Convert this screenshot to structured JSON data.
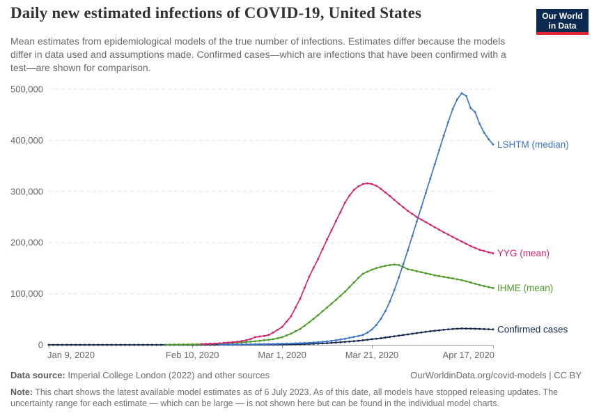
{
  "header": {
    "title": "Daily new estimated infections of COVID-19, United States",
    "subtitle": "Mean estimates from epidemiological models of the true number of infections. Estimates differ because the models differ in data used and assumptions made. Confirmed cases—which are infections that have been confirmed with a test—are shown for comparison.",
    "logo": {
      "line1": "Our World",
      "line2": "in Data"
    }
  },
  "colors": {
    "logo_bg": "#0b2a51",
    "logo_accent": "#e02833",
    "grid": "#e2e2e2",
    "axis": "#9a9a9a",
    "tick_text": "#666666"
  },
  "chart_data": {
    "type": "line",
    "title": "Daily new estimated infections of COVID-19, United States",
    "grid": "dashed-horizontal",
    "legend_position": "end-of-line-labels",
    "x_axis": {
      "unit": "date",
      "day0_date": "Jan 9, 2020",
      "range_days": [
        0,
        99
      ],
      "ticks": [
        {
          "day": 0,
          "label": "Jan 9, 2020"
        },
        {
          "day": 32,
          "label": "Feb 10, 2020"
        },
        {
          "day": 52,
          "label": "Mar 1, 2020"
        },
        {
          "day": 72,
          "label": "Mar 21, 2020"
        },
        {
          "day": 99,
          "label": "Apr 17, 2020"
        }
      ]
    },
    "y_axis": {
      "lim": [
        0,
        500000
      ],
      "ticks": [
        {
          "value": 0,
          "label": "0"
        },
        {
          "value": 100000,
          "label": "100,000"
        },
        {
          "value": 200000,
          "label": "200,000"
        },
        {
          "value": 300000,
          "label": "300,000"
        },
        {
          "value": 400000,
          "label": "400,000"
        },
        {
          "value": 500000,
          "label": "500,000"
        }
      ]
    },
    "series": [
      {
        "id": "confirmed",
        "name": "Confirmed cases",
        "color": "#15294d",
        "points": [
          [
            0,
            0
          ],
          [
            8,
            0
          ],
          [
            16,
            0
          ],
          [
            24,
            0
          ],
          [
            32,
            50
          ],
          [
            40,
            150
          ],
          [
            46,
            250
          ],
          [
            50,
            400
          ],
          [
            52,
            600
          ],
          [
            54,
            850
          ],
          [
            56,
            1200
          ],
          [
            58,
            1700
          ],
          [
            60,
            2400
          ],
          [
            62,
            3300
          ],
          [
            64,
            4500
          ],
          [
            66,
            5800
          ],
          [
            68,
            7200
          ],
          [
            70,
            9000
          ],
          [
            72,
            11000
          ],
          [
            74,
            13000
          ],
          [
            76,
            15500
          ],
          [
            78,
            18000
          ],
          [
            80,
            20500
          ],
          [
            82,
            23000
          ],
          [
            84,
            25500
          ],
          [
            86,
            27500
          ],
          [
            88,
            29500
          ],
          [
            90,
            31000
          ],
          [
            92,
            32000
          ],
          [
            94,
            31800
          ],
          [
            96,
            31200
          ],
          [
            98,
            30500
          ],
          [
            99,
            30200
          ]
        ]
      },
      {
        "id": "ihme",
        "name": "IHME (mean)",
        "color": "#4c9a26",
        "points": [
          [
            26,
            300
          ],
          [
            30,
            700
          ],
          [
            34,
            1300
          ],
          [
            38,
            2400
          ],
          [
            42,
            4200
          ],
          [
            46,
            7000
          ],
          [
            48,
            9000
          ],
          [
            50,
            11000
          ],
          [
            52,
            15000
          ],
          [
            54,
            22000
          ],
          [
            56,
            31000
          ],
          [
            58,
            44000
          ],
          [
            60,
            58000
          ],
          [
            62,
            73000
          ],
          [
            64,
            88000
          ],
          [
            66,
            104000
          ],
          [
            67,
            113000
          ],
          [
            68,
            122000
          ],
          [
            69,
            131000
          ],
          [
            70,
            139000
          ],
          [
            71,
            143000
          ],
          [
            72,
            147000
          ],
          [
            73,
            150000
          ],
          [
            74,
            152500
          ],
          [
            75,
            154500
          ],
          [
            76,
            156000
          ],
          [
            77,
            157000
          ],
          [
            78,
            156000
          ],
          [
            79,
            152000
          ],
          [
            80,
            148000
          ],
          [
            82,
            144000
          ],
          [
            84,
            140000
          ],
          [
            86,
            136000
          ],
          [
            88,
            133000
          ],
          [
            90,
            130000
          ],
          [
            92,
            126500
          ],
          [
            94,
            122000
          ],
          [
            96,
            117000
          ],
          [
            97,
            115000
          ],
          [
            98,
            113000
          ],
          [
            99,
            111000
          ]
        ]
      },
      {
        "id": "yyg",
        "name": "YYG (mean)",
        "color": "#d5246e",
        "points": [
          [
            34,
            1500
          ],
          [
            38,
            3000
          ],
          [
            42,
            6000
          ],
          [
            44,
            9000
          ],
          [
            45,
            11500
          ],
          [
            46,
            15000
          ],
          [
            47,
            16500
          ],
          [
            48,
            17500
          ],
          [
            49,
            19500
          ],
          [
            50,
            24000
          ],
          [
            52,
            35000
          ],
          [
            54,
            56000
          ],
          [
            56,
            90000
          ],
          [
            58,
            133000
          ],
          [
            60,
            168000
          ],
          [
            62,
            206000
          ],
          [
            64,
            242000
          ],
          [
            66,
            278000
          ],
          [
            67,
            292000
          ],
          [
            68,
            303000
          ],
          [
            69,
            310000
          ],
          [
            70,
            314500
          ],
          [
            71,
            316000
          ],
          [
            72,
            314500
          ],
          [
            73,
            311000
          ],
          [
            74,
            305000
          ],
          [
            75,
            298000
          ],
          [
            76,
            291000
          ],
          [
            78,
            276000
          ],
          [
            80,
            262000
          ],
          [
            82,
            250000
          ],
          [
            84,
            240000
          ],
          [
            86,
            230000
          ],
          [
            88,
            220000
          ],
          [
            90,
            211000
          ],
          [
            92,
            202000
          ],
          [
            94,
            193000
          ],
          [
            96,
            186000
          ],
          [
            98,
            181000
          ],
          [
            99,
            179000
          ]
        ]
      },
      {
        "id": "lshtm",
        "name": "LSHTM (median)",
        "color": "#3c74cb",
        "points": [
          [
            38,
            500
          ],
          [
            42,
            800
          ],
          [
            46,
            1200
          ],
          [
            50,
            1800
          ],
          [
            54,
            2600
          ],
          [
            58,
            4000
          ],
          [
            60,
            5200
          ],
          [
            62,
            6800
          ],
          [
            64,
            9000
          ],
          [
            66,
            12000
          ],
          [
            68,
            15500
          ],
          [
            70,
            19500
          ],
          [
            71,
            24000
          ],
          [
            72,
            30000
          ],
          [
            73,
            39000
          ],
          [
            74,
            51000
          ],
          [
            75,
            66000
          ],
          [
            76,
            85000
          ],
          [
            77,
            107000
          ],
          [
            78,
            132000
          ],
          [
            79,
            158000
          ],
          [
            80,
            185000
          ],
          [
            81,
            213000
          ],
          [
            82,
            241000
          ],
          [
            83,
            269000
          ],
          [
            84,
            297000
          ],
          [
            85,
            325000
          ],
          [
            86,
            353000
          ],
          [
            87,
            381000
          ],
          [
            88,
            409000
          ],
          [
            89,
            436000
          ],
          [
            90,
            461000
          ],
          [
            91,
            480000
          ],
          [
            92,
            492000
          ],
          [
            93,
            487000
          ],
          [
            94,
            463000
          ],
          [
            95,
            455000
          ],
          [
            96,
            432000
          ],
          [
            97,
            415000
          ],
          [
            98,
            402000
          ],
          [
            99,
            392000
          ]
        ]
      }
    ]
  },
  "footer": {
    "source_label": "Data source:",
    "source_text": "Imperial College London (2022) and other sources",
    "link_text": "OurWorldinData.org/covid-models | CC BY",
    "note_label": "Note:",
    "note_text": "This chart shows the latest available model estimates as of 6 July 2023. As of this date, all models have stopped releasing updates. The uncertainty range for each estimate — which can be large — is not shown here but can be found in the individual model charts."
  }
}
